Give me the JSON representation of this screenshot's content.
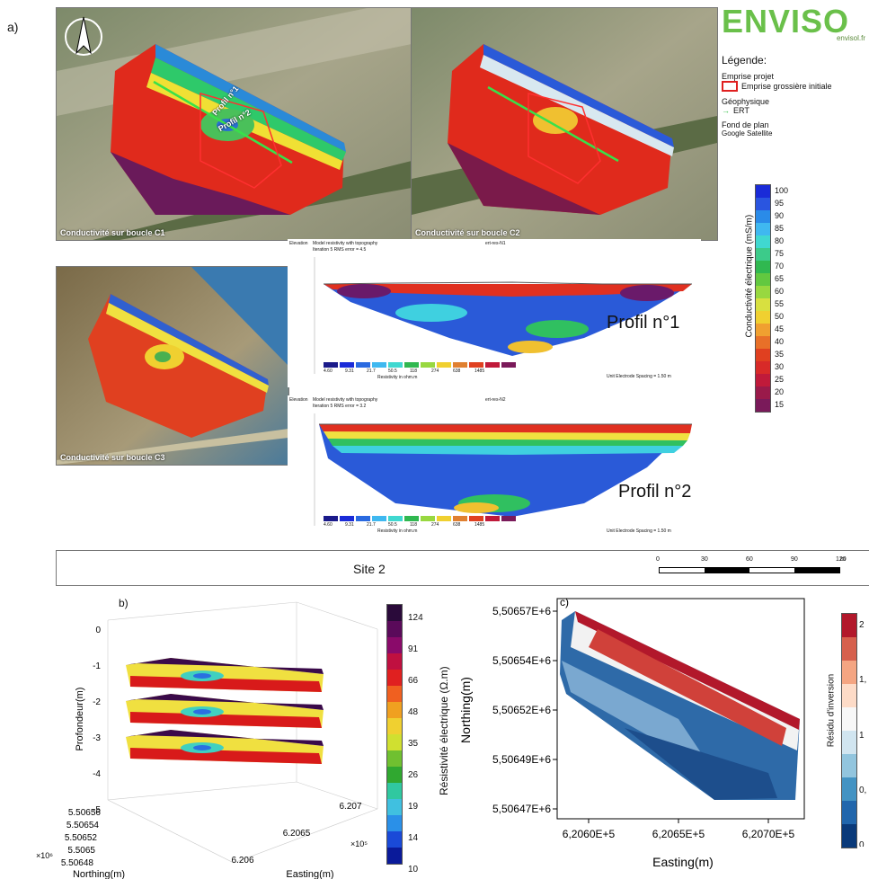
{
  "panel_labels": {
    "a": "a)",
    "b": "b)",
    "c": "c)"
  },
  "maps": {
    "c1_caption": "Conductivité sur boucle C1",
    "c2_caption": "Conductivité sur boucle C2",
    "c3_caption": "Conductivité sur boucle C3",
    "profil1_label": "Profil n°1",
    "profil2_label": "Profil n°2"
  },
  "logo": {
    "text": "ENVISO",
    "url": "envisol.fr"
  },
  "legend": {
    "title": "Légende:",
    "section1": "Emprise projet",
    "item1": "Emprise grossière initiale",
    "section2": "Géophysique",
    "item2": "ERT",
    "section3": "Fond de plan",
    "item3": "Google Satellite"
  },
  "conductivity_colorbar": {
    "label": "Conductivité électrique (mS/m)",
    "ticks": [
      "100",
      "95",
      "90",
      "85",
      "80",
      "75",
      "70",
      "65",
      "60",
      "55",
      "50",
      "45",
      "40",
      "35",
      "30",
      "25",
      "20",
      "15"
    ]
  },
  "ert_profiles": {
    "p1_header": "Model resistivity with topography",
    "p1_sub": "Iteration 5 RMS error = 4.5",
    "p1_title": "ert-res-N1",
    "p1_res_label": "Resistivity in ohm.m",
    "p1_spacing": "Unit Electrode Spacing = 1.50 m",
    "p2_header": "Model resistivity with topography",
    "p2_sub": "Iteration 5 RMS error = 3.2",
    "p2_title": "ert-res-N2",
    "p2_res_label": "Resistivity in ohm.m",
    "p2_spacing": "Unit Electrode Spacing = 1.50 m",
    "elevation": "Elevation",
    "res_ticks": [
      "4.60",
      "9.31",
      "21.7",
      "50.5",
      "118",
      "274",
      "638",
      "1485"
    ]
  },
  "site": {
    "label": "Site 2",
    "scale_ticks": [
      "0",
      "30",
      "60",
      "90",
      "120"
    ],
    "scale_unit": "m"
  },
  "chart_data": [
    {
      "type": "scatter",
      "panel": "b",
      "zlabel": "Profondeur(m)",
      "xlabel": "Easting(m)",
      "ylabel": "Northing(m)",
      "z_ticks": [
        "0",
        "-1",
        "-2",
        "-3",
        "-4",
        "-5"
      ],
      "y_ticks": [
        "5.50656",
        "5.50654",
        "5.50652",
        "5.5065",
        "5.50648"
      ],
      "y_multiplier": "×10⁶",
      "x_ticks": [
        "6.206",
        "6.2065",
        "6.207"
      ],
      "x_multiplier": "×10⁵",
      "slice_depths": [
        -1,
        -2,
        -3
      ],
      "colorbar_label": "Résistivité électrique (Ω.m)",
      "colorbar_ticks": [
        "124",
        "91",
        "66",
        "48",
        "35",
        "26",
        "19",
        "14",
        "10"
      ]
    },
    {
      "type": "heatmap",
      "panel": "c",
      "xlabel": "Easting(m)",
      "ylabel": "Northing(m)",
      "x_ticks": [
        "6,2060E+5",
        "6,2065E+5",
        "6,2070E+5"
      ],
      "y_ticks": [
        "5,50657E+6",
        "5,50654E+6",
        "5,50652E+6",
        "5,50649E+6",
        "5,50647E+6"
      ],
      "colorbar_label": "Résidu d'inversion",
      "colorbar_ticks": [
        "2",
        "1,",
        "1",
        "0,",
        "0"
      ]
    }
  ]
}
